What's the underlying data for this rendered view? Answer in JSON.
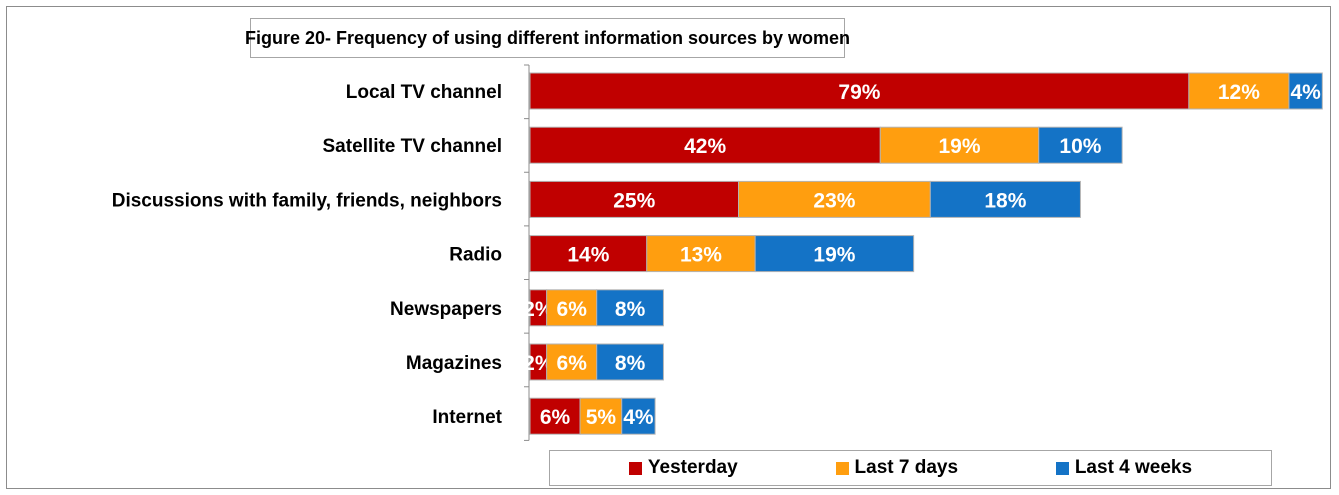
{
  "chart_data": {
    "type": "bar",
    "orientation": "horizontal",
    "stacked": true,
    "title": "Figure 20- Frequency of using different information sources by women",
    "categories": [
      "Local TV channel",
      "Satellite TV channel",
      "Discussions with family, friends, neighbors",
      "Radio",
      "Newspapers",
      "Magazines",
      "Internet"
    ],
    "series": [
      {
        "name": "Yesterday",
        "color": "#C00000",
        "values": [
          79,
          42,
          25,
          14,
          2,
          2,
          6
        ],
        "labels": [
          "79%",
          "42%",
          "25%",
          "14%",
          "2%",
          "2%",
          "6%"
        ]
      },
      {
        "name": "Last 7 days",
        "color": "#FF9E0F",
        "values": [
          12,
          19,
          23,
          13,
          6,
          6,
          5
        ],
        "labels": [
          "12%",
          "19%",
          "23%",
          "13%",
          "6%",
          "6%",
          "5%"
        ]
      },
      {
        "name": "Last 4 weeks",
        "color": "#1473C6",
        "values": [
          4,
          10,
          18,
          19,
          8,
          8,
          4
        ],
        "labels": [
          "4%",
          "10%",
          "18%",
          "19%",
          "8%",
          "8%",
          "4%"
        ]
      }
    ],
    "xlim": [
      0,
      95
    ],
    "grid": false,
    "legend_position": "bottom"
  }
}
